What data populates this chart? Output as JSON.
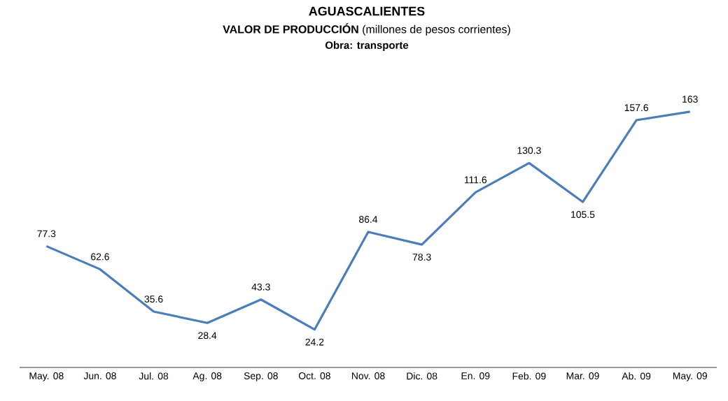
{
  "chart_data": {
    "type": "line",
    "title": "AGUASCALIENTES",
    "subtitle": "**VALOR DE PRODUCCIÓN** (millones de pesos corrientes)",
    "annotations": [
      "Obra: transporte"
    ],
    "categories": [
      "May. 08",
      "Jun. 08",
      "Jul. 08",
      "Ag. 08",
      "Sep. 08",
      "Oct. 08",
      "Nov. 08",
      "Dic. 08",
      "En. 09",
      "Feb. 09",
      "Mar. 09",
      "Ab. 09",
      "May. 09"
    ],
    "series": [
      {
        "color": "#4a7ebb",
        "values": [
          77.3,
          62.6,
          35.6,
          28.4,
          43.3,
          24.2,
          86.4,
          78.3,
          111.6,
          130.3,
          105.5,
          157.6,
          163
        ]
      }
    ],
    "data_labels": true,
    "grid": false,
    "marker": "none",
    "line_style": "solid"
  }
}
